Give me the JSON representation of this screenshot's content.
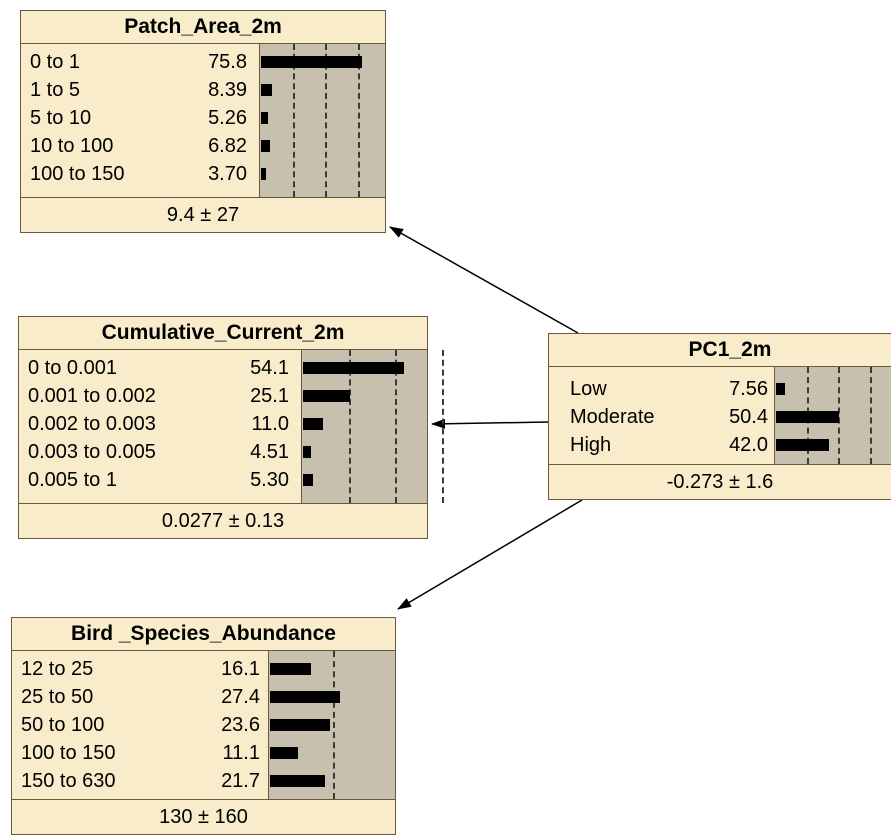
{
  "nodes": {
    "patch_area": {
      "title": "Patch_Area_2m",
      "states": [
        {
          "label": "0 to 1",
          "value": "75.8",
          "pct": 75.8
        },
        {
          "label": "1 to 5",
          "value": "8.39",
          "pct": 8.39
        },
        {
          "label": "5 to 10",
          "value": "5.26",
          "pct": 5.26
        },
        {
          "label": "10 to 100",
          "value": "6.82",
          "pct": 6.82
        },
        {
          "label": "100 to 150",
          "value": "3.70",
          "pct": 3.7
        }
      ],
      "summary": "9.4 ± 27"
    },
    "cumulative_current": {
      "title": "Cumulative_Current_2m",
      "states": [
        {
          "label": "0 to 0.001",
          "value": "54.1",
          "pct": 54.1
        },
        {
          "label": "0.001 to 0.002",
          "value": "25.1",
          "pct": 25.1
        },
        {
          "label": "0.002 to 0.003",
          "value": "11.0",
          "pct": 11.0
        },
        {
          "label": "0.003 to 0.005",
          "value": "4.51",
          "pct": 4.51
        },
        {
          "label": "0.005 to 1",
          "value": "5.30",
          "pct": 5.3
        }
      ],
      "summary": "0.0277 ± 0.13"
    },
    "pc1": {
      "title": "PC1_2m",
      "states": [
        {
          "label": "Low",
          "value": "7.56",
          "pct": 7.56
        },
        {
          "label": "Moderate",
          "value": "50.4",
          "pct": 50.4
        },
        {
          "label": "High",
          "value": "42.0",
          "pct": 42.0
        }
      ],
      "summary": "-0.273 ± 1.6"
    },
    "bird_species": {
      "title": "Bird _Species_Abundance",
      "states": [
        {
          "label": "12 to 25",
          "value": "16.1",
          "pct": 16.1
        },
        {
          "label": "25 to 50",
          "value": "27.4",
          "pct": 27.4
        },
        {
          "label": "50 to 100",
          "value": "23.6",
          "pct": 23.6
        },
        {
          "label": "100 to 150",
          "value": "11.1",
          "pct": 11.1
        },
        {
          "label": "150 to 630",
          "value": "21.7",
          "pct": 21.7
        }
      ],
      "summary": "130 ± 160"
    }
  },
  "edges": [
    {
      "from": "pc1",
      "to": "patch_area"
    },
    {
      "from": "pc1",
      "to": "cumulative_current"
    },
    {
      "from": "pc1",
      "to": "bird_species"
    }
  ]
}
